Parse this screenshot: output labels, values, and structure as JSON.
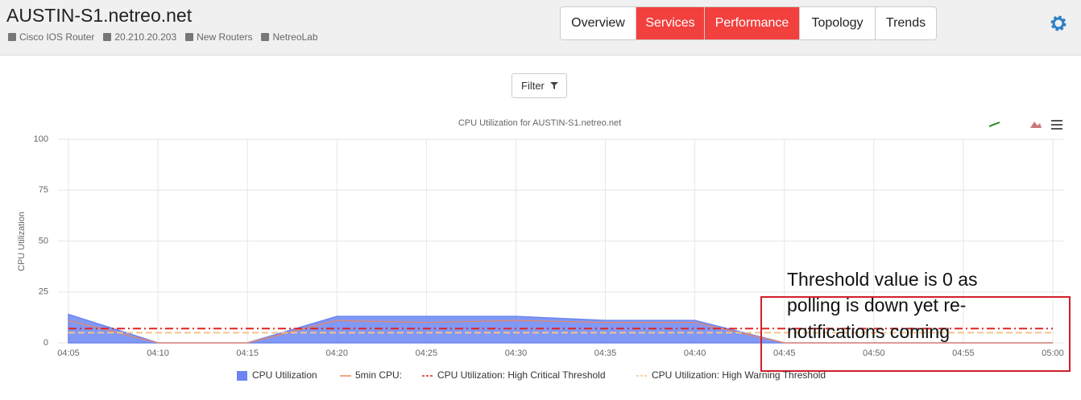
{
  "header": {
    "title": "AUSTIN-S1.netreo.net",
    "info": [
      "Cisco IOS Router",
      "20.210.20.203",
      "New Routers",
      "NetreoLab"
    ]
  },
  "nav": [
    "Overview",
    "Services",
    "Performance",
    "Topology",
    "Trends"
  ],
  "filter": "Filter",
  "chart_data": {
    "type": "line",
    "title": "CPU Utilization for AUSTIN-S1.netreo.net",
    "y_label": "CPU Utilization",
    "categories": [
      "04:05",
      "04:10",
      "04:15",
      "04:20",
      "04:25",
      "04:30",
      "04:35",
      "04:40",
      "04:45",
      "04:50",
      "04:55",
      "05:00"
    ],
    "series": [
      {
        "name": "CPU Utilization",
        "color": "#6b86f2",
        "style": "area",
        "dash": "solid",
        "values": [
          14,
          0,
          0,
          13,
          13,
          13,
          11,
          11,
          0,
          0,
          0,
          0
        ]
      },
      {
        "name": "5min CPU:",
        "color": "#f0845a",
        "style": "line",
        "dash": "solid",
        "values": [
          11,
          0,
          0,
          11,
          10,
          11,
          10,
          10,
          0,
          0,
          0,
          0
        ]
      },
      {
        "name": "CPU Utilization: High Critical Threshold",
        "color": "#e02424",
        "style": "line",
        "dash": "dashdot",
        "values": [
          7,
          7,
          7,
          7,
          7,
          7,
          7,
          7,
          7,
          7,
          7,
          7
        ]
      },
      {
        "name": "CPU Utilization: High Warning Threshold",
        "color": "#f2c48c",
        "style": "line",
        "dash": "dash",
        "values": [
          5,
          5,
          5,
          5,
          5,
          5,
          5,
          5,
          5,
          5,
          5,
          5
        ]
      }
    ],
    "ylim": [
      0,
      100
    ],
    "yticks": [
      0,
      25,
      50,
      75,
      100
    ],
    "grid": true
  },
  "annotation": [
    "Threshold value is 0 as",
    "polling is down yet re-",
    "notifications coming"
  ]
}
